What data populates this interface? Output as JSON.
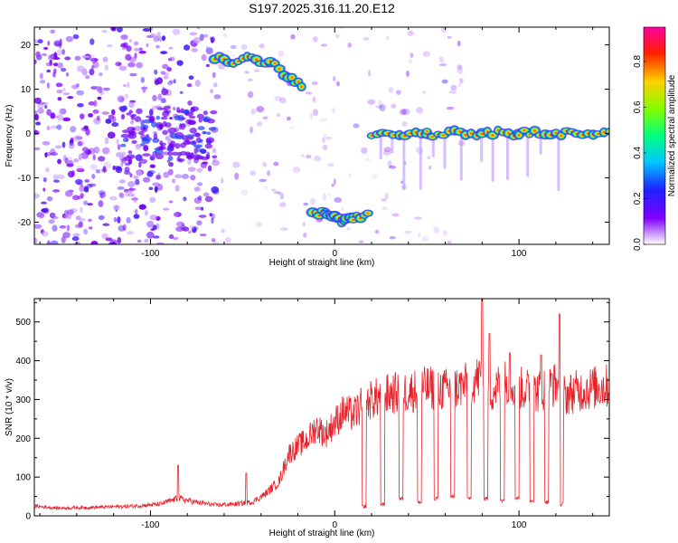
{
  "title": "S197.2025.316.11.20.E12",
  "chart_data": [
    {
      "type": "heatmap",
      "name": "spectrogram",
      "xlabel": "Height of straight line (km)",
      "ylabel": "Frequency (Hz)",
      "xlim": [
        -163,
        149
      ],
      "ylim": [
        -25,
        24
      ],
      "xticks": [
        -100,
        0,
        100
      ],
      "yticks": [
        -20,
        -10,
        0,
        10,
        20
      ],
      "colorbar": {
        "label": "Normalized spectral amplitude",
        "range": [
          0,
          0.95
        ],
        "ticks": [
          0.0,
          0.2,
          0.4,
          0.6,
          0.8
        ]
      },
      "tracks": [
        {
          "x": [
            -65,
            -55,
            -45,
            -35,
            -25,
            -18
          ],
          "y": [
            17,
            16,
            17,
            16,
            13,
            11
          ]
        },
        {
          "x": [
            -12,
            -5,
            0,
            5,
            10,
            18
          ],
          "y": [
            -18,
            -18,
            -19,
            -20,
            -19,
            -18
          ]
        },
        {
          "x": [
            20,
            50,
            80,
            100,
            120,
            149
          ],
          "y": [
            0,
            0,
            0,
            0,
            0,
            0
          ]
        }
      ]
    },
    {
      "type": "line",
      "name": "snr",
      "xlabel": "Height of straight line (km)",
      "ylabel": "SNR (10 * v/v)",
      "xlim": [
        -163,
        149
      ],
      "ylim": [
        0,
        560
      ],
      "xticks": [
        -100,
        0,
        100
      ],
      "yticks": [
        0,
        100,
        200,
        300,
        400,
        500
      ],
      "color": "#e8222a",
      "points": [
        {
          "x": -163,
          "y": 25
        },
        {
          "x": -150,
          "y": 20
        },
        {
          "x": -130,
          "y": 22
        },
        {
          "x": -110,
          "y": 25
        },
        {
          "x": -95,
          "y": 30
        },
        {
          "x": -85,
          "y": 45
        },
        {
          "x": -75,
          "y": 35
        },
        {
          "x": -65,
          "y": 28
        },
        {
          "x": -55,
          "y": 30
        },
        {
          "x": -45,
          "y": 35
        },
        {
          "x": -38,
          "y": 55
        },
        {
          "x": -30,
          "y": 90
        },
        {
          "x": -25,
          "y": 160
        },
        {
          "x": -20,
          "y": 180
        },
        {
          "x": -15,
          "y": 195
        },
        {
          "x": -10,
          "y": 230
        },
        {
          "x": -5,
          "y": 210
        },
        {
          "x": 0,
          "y": 240
        },
        {
          "x": 5,
          "y": 270
        },
        {
          "x": 10,
          "y": 260
        },
        {
          "x": 15,
          "y": 285
        },
        {
          "x": 20,
          "y": 300
        },
        {
          "x": 30,
          "y": 315
        },
        {
          "x": 40,
          "y": 320
        },
        {
          "x": 50,
          "y": 330
        },
        {
          "x": 60,
          "y": 325
        },
        {
          "x": 70,
          "y": 335
        },
        {
          "x": 80,
          "y": 360
        },
        {
          "x": 85,
          "y": 320
        },
        {
          "x": 90,
          "y": 340
        },
        {
          "x": 95,
          "y": 350
        },
        {
          "x": 100,
          "y": 330
        },
        {
          "x": 110,
          "y": 320
        },
        {
          "x": 120,
          "y": 340
        },
        {
          "x": 125,
          "y": 310
        },
        {
          "x": 130,
          "y": 320
        },
        {
          "x": 140,
          "y": 330
        },
        {
          "x": 149,
          "y": 335
        }
      ],
      "spikes": [
        {
          "x": 80,
          "y": 560
        },
        {
          "x": 122,
          "y": 520
        },
        {
          "x": 84,
          "y": 470
        },
        {
          "x": 95,
          "y": 420
        },
        {
          "x": 112,
          "y": 415
        },
        {
          "x": 118,
          "y": 365
        },
        {
          "x": -85,
          "y": 130
        },
        {
          "x": -48,
          "y": 110
        }
      ],
      "dips": [
        {
          "x": 16,
          "y": 20
        },
        {
          "x": 26,
          "y": 25
        },
        {
          "x": 36,
          "y": 40
        },
        {
          "x": 46,
          "y": 30
        },
        {
          "x": 55,
          "y": 40
        },
        {
          "x": 64,
          "y": 45
        },
        {
          "x": 73,
          "y": 40
        },
        {
          "x": 82,
          "y": 40
        },
        {
          "x": 91,
          "y": 35
        },
        {
          "x": 99,
          "y": 40
        },
        {
          "x": 107,
          "y": 35
        },
        {
          "x": 115,
          "y": 30
        },
        {
          "x": 123,
          "y": 25
        }
      ]
    }
  ]
}
